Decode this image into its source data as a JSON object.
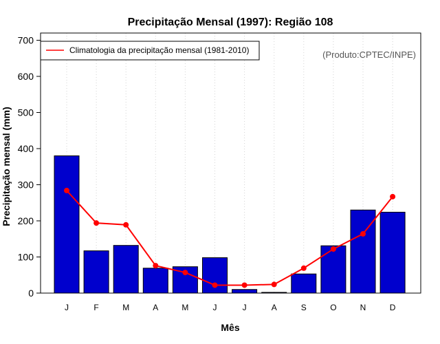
{
  "chart_data": {
    "type": "bar",
    "title": "Precipitação Mensal (1997): Região 108",
    "xlabel": "Mês",
    "ylabel": "Precipitação mensal (mm)",
    "ylim": [
      0,
      700
    ],
    "yticks": [
      0,
      100,
      200,
      300,
      400,
      500,
      600,
      700
    ],
    "categories": [
      "J",
      "F",
      "M",
      "A",
      "M",
      "J",
      "J",
      "A",
      "S",
      "O",
      "N",
      "D"
    ],
    "series": [
      {
        "name": "Precipitação mensal (1997)",
        "type": "bar",
        "color": "#0000cd",
        "values": [
          380,
          117,
          132,
          69,
          73,
          98,
          10,
          2,
          53,
          131,
          230,
          224
        ]
      },
      {
        "name": "Climatologia da precipitação mensal (1981-2010)",
        "type": "line",
        "color": "#ff0000",
        "values": [
          284,
          194,
          189,
          76,
          57,
          22,
          22,
          24,
          69,
          122,
          164,
          267
        ]
      }
    ],
    "legend": {
      "entries": [
        "Climatologia da precipitação mensal (1981-2010)"
      ],
      "placement": "top-left"
    },
    "annotation": "(Produto:CPTEC/INPE)",
    "grid": "vertical-dotted"
  }
}
